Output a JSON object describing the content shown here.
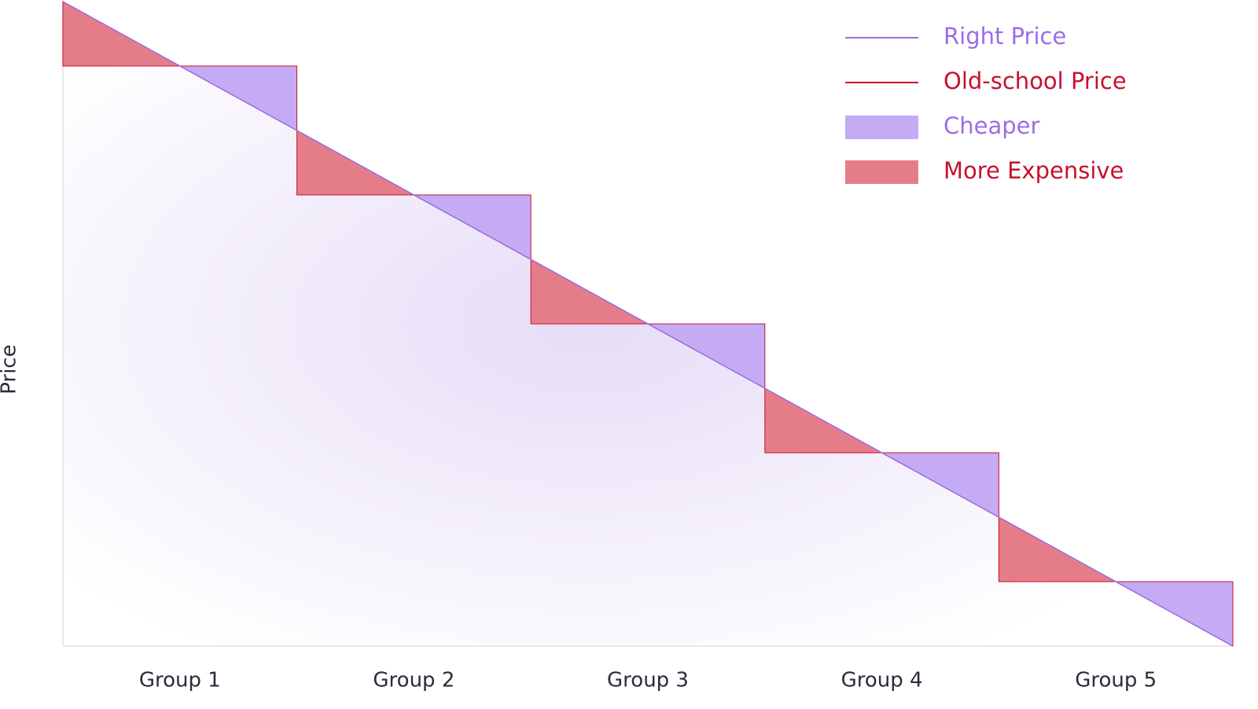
{
  "chart_data": {
    "type": "step-comparison",
    "y_label": "Price",
    "categories": [
      "Group 1",
      "Group 2",
      "Group 3",
      "Group 4",
      "Group 5"
    ],
    "series": [
      {
        "name": "Right Price",
        "color": "#9a6ee6"
      },
      {
        "name": "Old-school Price",
        "color": "#c8102e"
      },
      {
        "name": "Cheaper",
        "color": "#c4abf3"
      },
      {
        "name": "More Expensive",
        "color": "#e57d89"
      }
    ]
  }
}
